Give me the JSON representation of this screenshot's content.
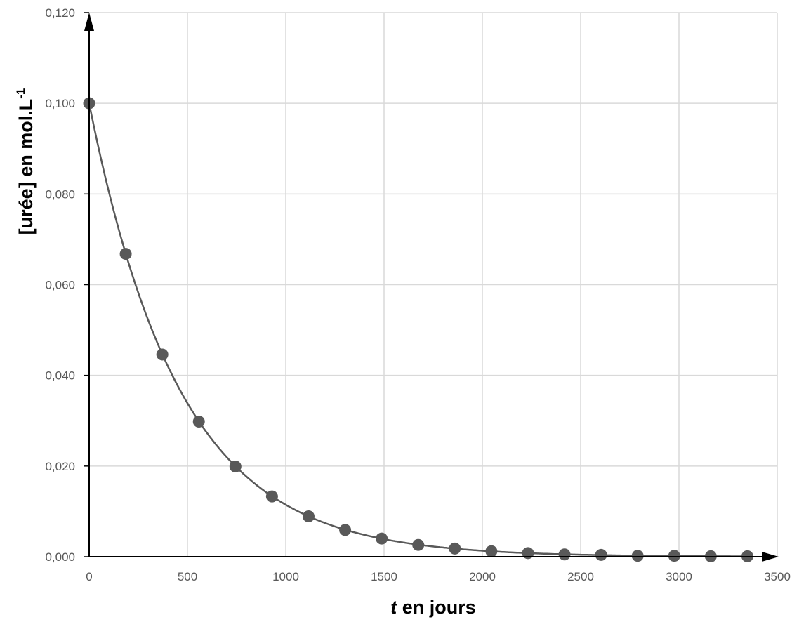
{
  "chart_data": {
    "type": "scatter",
    "title": "",
    "xlabel_italic": "t",
    "xlabel_rest": " en jours",
    "ylabel_main": "[urée] en mol.L",
    "ylabel_sup": "-1",
    "xlim": [
      0,
      3500
    ],
    "ylim": [
      0,
      0.12
    ],
    "x_ticks": [
      "0",
      "500",
      "1000",
      "1500",
      "2000",
      "2500",
      "3000",
      "3500"
    ],
    "y_ticks": [
      "0,000",
      "0,020",
      "0,040",
      "0,060",
      "0,080",
      "0,100",
      "0,120"
    ],
    "grid": true,
    "series": [
      {
        "x": [
          0,
          186,
          372,
          558,
          744,
          930,
          1116,
          1302,
          1488,
          1674,
          1860,
          2046,
          2232,
          2418,
          2604,
          2790,
          2976,
          3162,
          3348
        ],
        "y": [
          0.1,
          0.0668,
          0.0446,
          0.0298,
          0.0199,
          0.0133,
          0.0089,
          0.0059,
          0.004,
          0.0026,
          0.0018,
          0.0012,
          0.0008,
          0.0005,
          0.0004,
          0.0002,
          0.0002,
          0.0001,
          0.0001
        ],
        "marker": "circle",
        "color": "#595959"
      }
    ],
    "curve": {
      "model": "exponential decay",
      "y0": 0.1,
      "half_life_days": 320,
      "color": "#595959"
    },
    "axis_color": "#000000",
    "grid_color": "#d9d9d9"
  }
}
